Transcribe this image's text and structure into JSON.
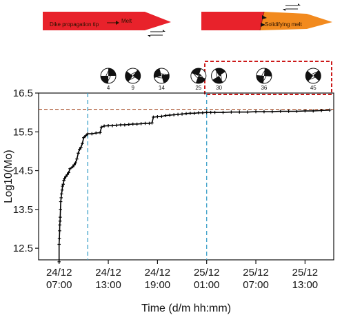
{
  "schematic": {
    "left_label": "Dike propagation tip",
    "left_sublabel": "Melt",
    "right_label": "Solidifying melt"
  },
  "beachballs": [
    {
      "label": "4",
      "x": "24/12 13:00"
    },
    {
      "label": "9",
      "x": "24/12 16:00"
    },
    {
      "label": "14",
      "x": "24/12 19:30"
    },
    {
      "label": "25",
      "x": "25/12 00:00"
    },
    {
      "label": "30",
      "x": "25/12 02:30"
    },
    {
      "label": "36",
      "x": "25/12 08:00"
    },
    {
      "label": "45",
      "x": "25/12 14:00"
    }
  ],
  "colors": {
    "dike_red": "#e8222b",
    "solid_orange": "#f28a1e",
    "series": "#000000",
    "vline": "#3aa0c8",
    "hline": "#a0401a",
    "highlight_box": "#cc1a1a"
  },
  "chart_data": {
    "type": "line",
    "xlabel": "Time (d/m hh:mm)",
    "ylabel": "Log10(Mo)",
    "xlim": [
      "24/12 04:30",
      "25/12 16:30"
    ],
    "ylim": [
      12.2,
      16.5
    ],
    "yticks": [
      12.5,
      13.5,
      14.5,
      15.5,
      16.5
    ],
    "xticks": [
      {
        "top": "24/12",
        "bottom": "07:00",
        "x": "24/12 07:00"
      },
      {
        "top": "24/12",
        "bottom": "13:00",
        "x": "24/12 13:00"
      },
      {
        "top": "24/12",
        "bottom": "19:00",
        "x": "24/12 19:00"
      },
      {
        "top": "25/12",
        "bottom": "01:00",
        "x": "25/12 01:00"
      },
      {
        "top": "25/12",
        "bottom": "07:00",
        "x": "25/12 07:00"
      },
      {
        "top": "25/12",
        "bottom": "13:00",
        "x": "25/12 13:00"
      }
    ],
    "vlines": [
      "24/12 10:30",
      "25/12 01:00"
    ],
    "hline": 16.08,
    "series": [
      {
        "points": [
          [
            "24/12 07:00",
            12.15
          ],
          [
            "24/12 07:00",
            12.6
          ],
          [
            "24/12 07:02",
            12.75
          ],
          [
            "24/12 07:04",
            12.95
          ],
          [
            "24/12 07:05",
            13.1
          ],
          [
            "24/12 07:07",
            13.2
          ],
          [
            "24/12 07:08",
            13.3
          ],
          [
            "24/12 07:10",
            13.5
          ],
          [
            "24/12 07:12",
            13.7
          ],
          [
            "24/12 07:15",
            13.8
          ],
          [
            "24/12 07:18",
            13.9
          ],
          [
            "24/12 07:22",
            14.0
          ],
          [
            "24/12 07:25",
            14.1
          ],
          [
            "24/12 07:30",
            14.15
          ],
          [
            "24/12 07:35",
            14.25
          ],
          [
            "24/12 07:40",
            14.3
          ],
          [
            "24/12 07:50",
            14.35
          ],
          [
            "24/12 08:00",
            14.4
          ],
          [
            "24/12 08:10",
            14.45
          ],
          [
            "24/12 08:20",
            14.55
          ],
          [
            "24/12 08:40",
            14.6
          ],
          [
            "24/12 08:50",
            14.65
          ],
          [
            "24/12 09:00",
            14.7
          ],
          [
            "24/12 09:10",
            14.8
          ],
          [
            "24/12 09:20",
            14.95
          ],
          [
            "24/12 09:30",
            15.05
          ],
          [
            "24/12 09:40",
            15.1
          ],
          [
            "24/12 09:50",
            15.2
          ],
          [
            "24/12 10:00",
            15.35
          ],
          [
            "24/12 10:15",
            15.4
          ],
          [
            "24/12 10:30",
            15.45
          ],
          [
            "24/12 11:00",
            15.45
          ],
          [
            "24/12 11:30",
            15.47
          ],
          [
            "24/12 12:00",
            15.48
          ],
          [
            "24/12 12:10",
            15.62
          ],
          [
            "24/12 12:30",
            15.65
          ],
          [
            "24/12 13:00",
            15.66
          ],
          [
            "24/12 13:30",
            15.66
          ],
          [
            "24/12 14:00",
            15.67
          ],
          [
            "24/12 14:30",
            15.68
          ],
          [
            "24/12 15:00",
            15.68
          ],
          [
            "24/12 15:30",
            15.69
          ],
          [
            "24/12 16:00",
            15.7
          ],
          [
            "24/12 16:30",
            15.7
          ],
          [
            "24/12 17:00",
            15.71
          ],
          [
            "24/12 17:30",
            15.72
          ],
          [
            "24/12 18:00",
            15.72
          ],
          [
            "24/12 18:20",
            15.73
          ],
          [
            "24/12 18:30",
            15.88
          ],
          [
            "24/12 19:00",
            15.89
          ],
          [
            "24/12 19:30",
            15.9
          ],
          [
            "24/12 20:00",
            15.92
          ],
          [
            "24/12 20:30",
            15.93
          ],
          [
            "24/12 21:00",
            15.94
          ],
          [
            "24/12 21:30",
            15.95
          ],
          [
            "24/12 22:00",
            15.96
          ],
          [
            "24/12 22:30",
            15.97
          ],
          [
            "24/12 23:00",
            15.98
          ],
          [
            "24/12 23:30",
            15.98
          ],
          [
            "25/12 00:00",
            15.99
          ],
          [
            "25/12 00:30",
            15.99
          ],
          [
            "25/12 01:00",
            16.0
          ],
          [
            "25/12 01:30",
            16.0
          ],
          [
            "25/12 02:00",
            16.0
          ],
          [
            "25/12 03:00",
            16.0
          ],
          [
            "25/12 04:00",
            16.01
          ],
          [
            "25/12 05:00",
            16.01
          ],
          [
            "25/12 06:00",
            16.01
          ],
          [
            "25/12 07:00",
            16.02
          ],
          [
            "25/12 08:00",
            16.02
          ],
          [
            "25/12 09:00",
            16.02
          ],
          [
            "25/12 10:00",
            16.03
          ],
          [
            "25/12 11:00",
            16.03
          ],
          [
            "25/12 12:00",
            16.03
          ],
          [
            "25/12 13:00",
            16.04
          ],
          [
            "25/12 14:00",
            16.04
          ],
          [
            "25/12 15:00",
            16.05
          ],
          [
            "25/12 16:00",
            16.06
          ]
        ]
      }
    ]
  }
}
